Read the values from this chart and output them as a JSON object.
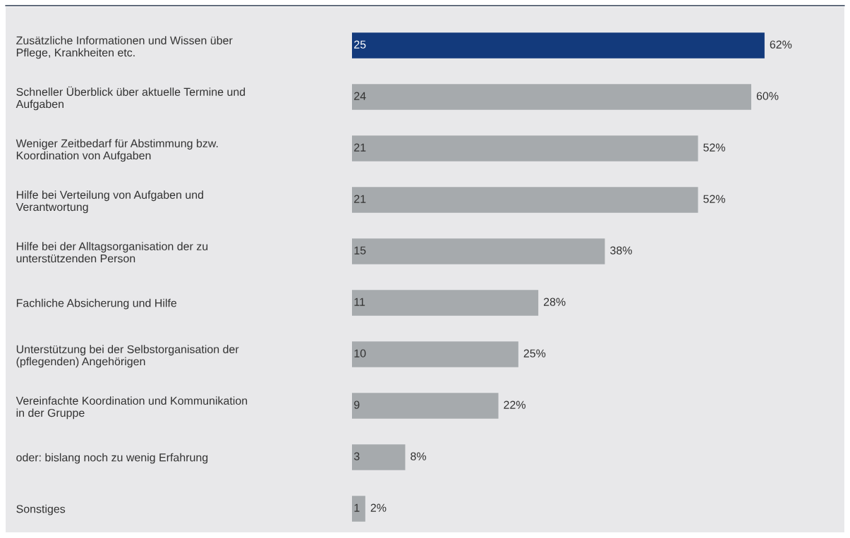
{
  "chart_data": {
    "type": "bar",
    "orientation": "horizontal",
    "categories": [
      "Zusätzliche Informationen und Wissen über\nPflege, Krankheiten etc.",
      "Schneller Überblick über aktuelle Termine und\nAufgaben",
      "Weniger Zeitbedarf für Abstimmung bzw.\nKoordination von Aufgaben",
      "Hilfe bei Verteilung von Aufgaben und\nVerantwortung",
      "Hilfe bei der Alltagsorganisation der zu\nunterstützenden Person",
      "Fachliche Absicherung und Hilfe",
      "Unterstützung bei der Selbstorganisation der\n(pflegenden) Angehörigen",
      "Vereinfachte Koordination und Kommunikation\nin der Gruppe",
      "oder: bislang noch zu wenig Erfahrung",
      "Sonstiges"
    ],
    "values": [
      62,
      60,
      52,
      52,
      38,
      28,
      25,
      22,
      8,
      2
    ],
    "annotations": [
      "25",
      "24",
      "21",
      "21",
      "15",
      "11",
      "10",
      "9",
      "3",
      "1"
    ],
    "colors": [
      "#133a7c",
      "#a6aaad",
      "#a6aaad",
      "#a6aaad",
      "#a6aaad",
      "#a6aaad",
      "#a6aaad",
      "#a6aaad",
      "#a6aaad",
      "#a6aaad"
    ],
    "value_labels": [
      "62%",
      "60%",
      "52%",
      "52%",
      "38%",
      "28%",
      "25%",
      "22%",
      "8%",
      "2%"
    ],
    "legend": false
  }
}
